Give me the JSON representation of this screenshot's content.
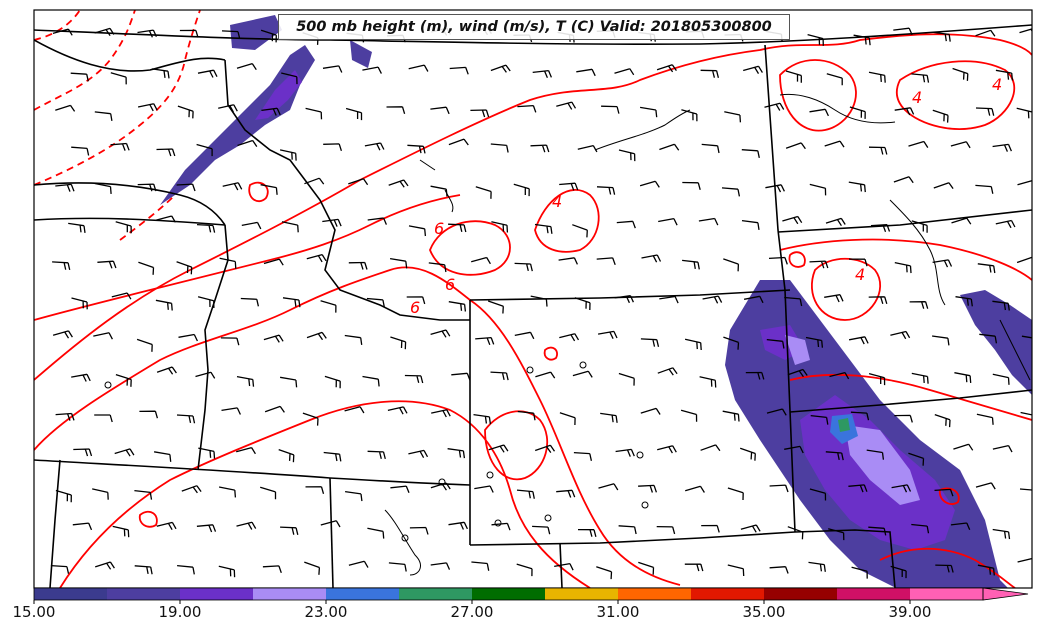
{
  "title": "500 mb height (m), wind (m/s), T (C) Valid: 201805300800",
  "colorbar": {
    "colors": [
      "#3b3b8e",
      "#4d3ea0",
      "#6b30c8",
      "#a98cf5",
      "#3a74dd",
      "#2e9862",
      "#006d00",
      "#e8b400",
      "#ff6600",
      "#e21800",
      "#960000",
      "#d01066",
      "#ff60b4"
    ],
    "tick_labels": [
      "15.00",
      "19.00",
      "23.00",
      "27.00",
      "31.00",
      "35.00",
      "39.00"
    ]
  },
  "contour_labels": [
    "6",
    "6",
    "6",
    "4",
    "4",
    "4",
    "4"
  ],
  "colors": {
    "temperature_contour": "#ff0000",
    "boundary": "#000000",
    "wind_barb": "#000000"
  }
}
